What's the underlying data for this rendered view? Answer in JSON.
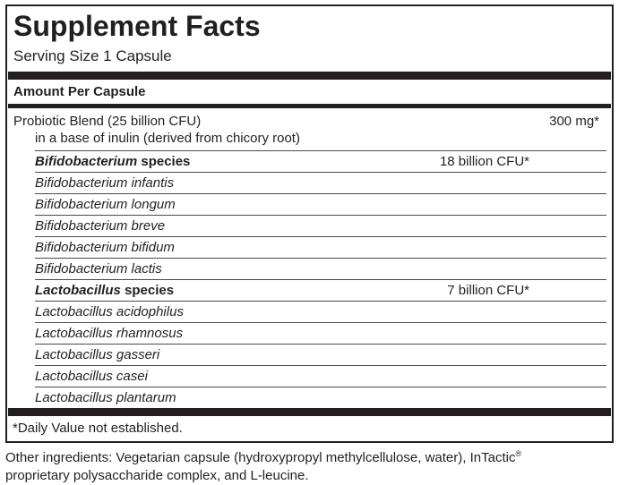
{
  "label": {
    "title": "Supplement Facts",
    "serving_size": "Serving Size 1 Capsule",
    "column_header": "Amount Per Capsule",
    "footnote": "*Daily Value not established."
  },
  "probiotic_blend": {
    "name": "Probiotic Blend (25 billion CFU)",
    "subname": "in a base of inulin (derived from chicory root)",
    "amount": "300 mg*"
  },
  "species_rows": [
    {
      "genus": "Bifidobacterium",
      "rest": " species",
      "amount": "18 billion CFU*"
    },
    {
      "genus": "Bifidobacterium infantis",
      "rest": "",
      "amount": ""
    },
    {
      "genus": "Bifidobacterium longum",
      "rest": "",
      "amount": ""
    },
    {
      "genus": "Bifidobacterium breve",
      "rest": "",
      "amount": ""
    },
    {
      "genus": "Bifidobacterium bifidum",
      "rest": "",
      "amount": ""
    },
    {
      "genus": "Bifidobacterium lactis",
      "rest": "",
      "amount": ""
    },
    {
      "genus": "Lactobacillus",
      "rest": " species",
      "amount": "7 billion CFU*"
    },
    {
      "genus": "Lactobacillus acidophilus",
      "rest": "",
      "amount": ""
    },
    {
      "genus": "Lactobacillus rhamnosus",
      "rest": "",
      "amount": ""
    },
    {
      "genus": "Lactobacillus gasseri",
      "rest": "",
      "amount": ""
    },
    {
      "genus": "Lactobacillus casei",
      "rest": "",
      "amount": ""
    },
    {
      "genus": "Lactobacillus plantarum",
      "rest": "",
      "amount": ""
    }
  ],
  "other_ingredients": {
    "line1": "Other ingredients: Vegetarian capsule (hydroxypropyl methylcellulose, water), InTactic",
    "registered_mark": "®",
    "line2": "proprietary polysaccharide complex, and L-leucine."
  },
  "colors": {
    "text": "#231f20",
    "bar": "#231f20",
    "hairline": "#4a4a4c",
    "background": "#ffffff"
  }
}
